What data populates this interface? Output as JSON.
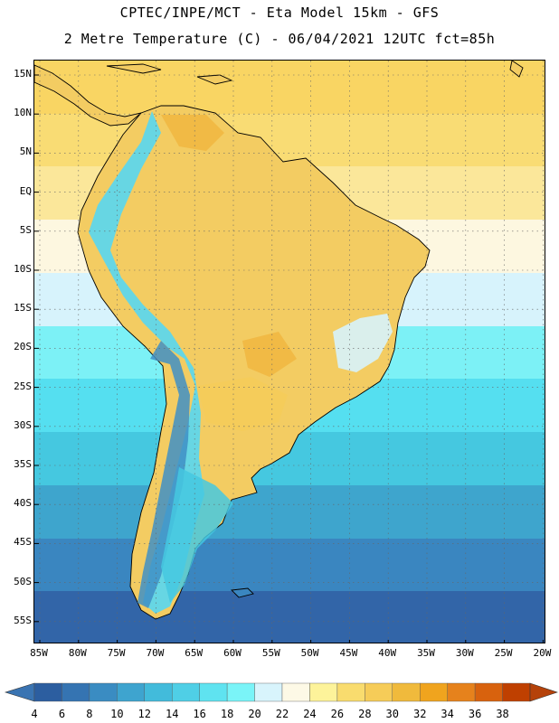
{
  "header": {
    "line1": "CPTEC/INPE/MCT -  Eta Model 15km - GFS",
    "line2": "2 Metre Temperature (C) - 06/04/2021 12UTC fct=85h"
  },
  "map": {
    "lat_labels": [
      "15N",
      "10N",
      "5N",
      "EQ",
      "5S",
      "10S",
      "15S",
      "20S",
      "25S",
      "30S",
      "35S",
      "40S",
      "45S",
      "50S",
      "55S"
    ],
    "lon_labels": [
      "85W",
      "80W",
      "75W",
      "70W",
      "65W",
      "60W",
      "55W",
      "50W",
      "45W",
      "40W",
      "35W",
      "30W",
      "25W",
      "20W"
    ],
    "ocean_bands": [
      {
        "color": "#f9d563"
      },
      {
        "color": "#f9dc74"
      },
      {
        "color": "#fbe79a"
      },
      {
        "color": "#fdf7e0"
      },
      {
        "color": "#d7f3fc"
      },
      {
        "color": "#7cf1f6"
      },
      {
        "color": "#55dff0"
      },
      {
        "color": "#45c8e0"
      },
      {
        "color": "#3ea5cd"
      },
      {
        "color": "#3a86c0"
      },
      {
        "color": "#3265a8"
      }
    ]
  },
  "colorbar": {
    "labels": [
      "4",
      "6",
      "8",
      "10",
      "12",
      "14",
      "16",
      "18",
      "20",
      "22",
      "24",
      "26",
      "28",
      "30",
      "32",
      "34",
      "36",
      "38"
    ],
    "colors": [
      "#2c5ea0",
      "#3574b2",
      "#3a8cc2",
      "#3ea4cf",
      "#42bbdb",
      "#4fcfe6",
      "#5fe3f0",
      "#7af4f8",
      "#d8f4fc",
      "#fdf9e6",
      "#fdf39a",
      "#f9dc6e",
      "#f6cc58",
      "#f0ba3c",
      "#f0a41e",
      "#e6821c",
      "#d8620e",
      "#bf4000"
    ],
    "left_arrow_color": "#3a74b2",
    "right_arrow_color": "#b5420a"
  }
}
